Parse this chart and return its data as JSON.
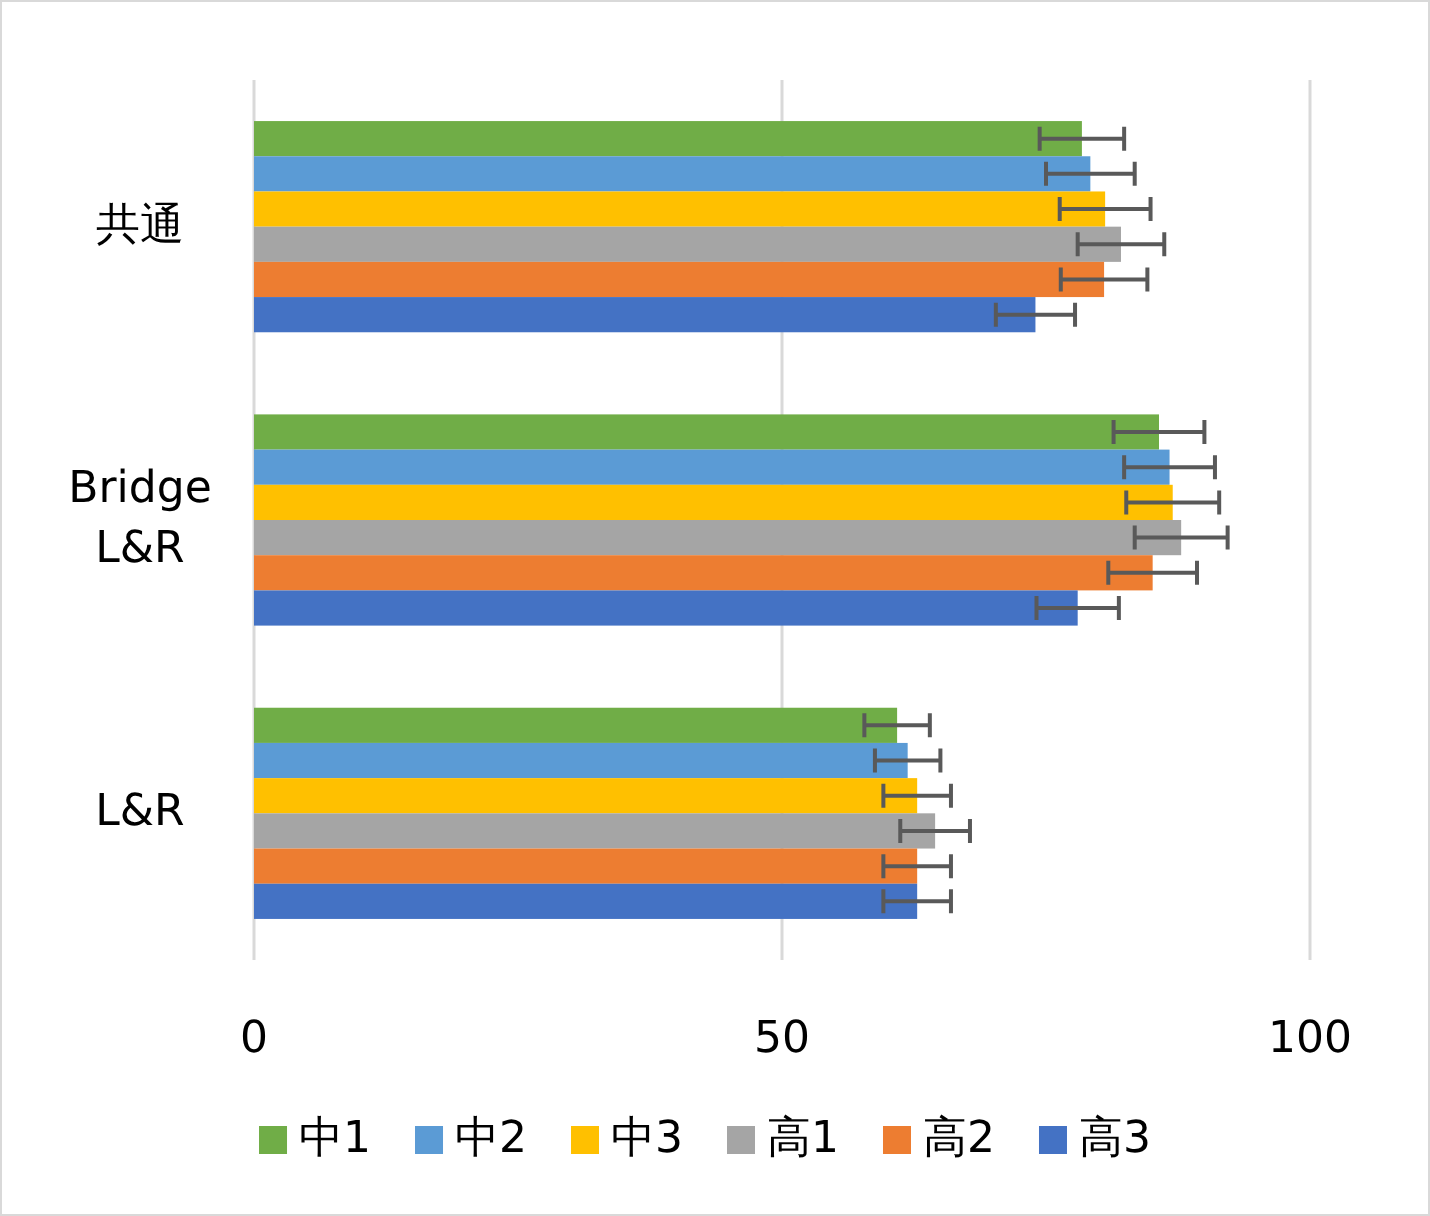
{
  "chart_data": {
    "type": "bar",
    "orientation": "horizontal",
    "categories": [
      "共通",
      "Bridge L&R",
      "L&R"
    ],
    "xlim": [
      0,
      100
    ],
    "xticks": [
      0,
      50,
      100
    ],
    "grid": "x",
    "legend": "bottom",
    "series": [
      {
        "name": "中1",
        "color": "#70ad47",
        "values": [
          78.4,
          85.7,
          60.9
        ],
        "errors": [
          4.0,
          4.3,
          3.1
        ]
      },
      {
        "name": "中2",
        "color": "#5b9bd5",
        "values": [
          79.2,
          86.7,
          61.9
        ],
        "errors": [
          4.2,
          4.3,
          3.1
        ]
      },
      {
        "name": "中3",
        "color": "#ffc000",
        "values": [
          80.6,
          87.0,
          62.8
        ],
        "errors": [
          4.3,
          4.4,
          3.2
        ]
      },
      {
        "name": "高1",
        "color": "#a5a5a5",
        "values": [
          82.1,
          87.8,
          64.5
        ],
        "errors": [
          4.1,
          4.4,
          3.3
        ]
      },
      {
        "name": "高2",
        "color": "#ed7d31",
        "values": [
          80.5,
          85.1,
          62.8
        ],
        "errors": [
          4.1,
          4.2,
          3.2
        ]
      },
      {
        "name": "高3",
        "color": "#4472c4",
        "values": [
          74.0,
          78.0,
          62.8
        ],
        "errors": [
          3.75,
          3.9,
          3.2
        ]
      }
    ]
  }
}
